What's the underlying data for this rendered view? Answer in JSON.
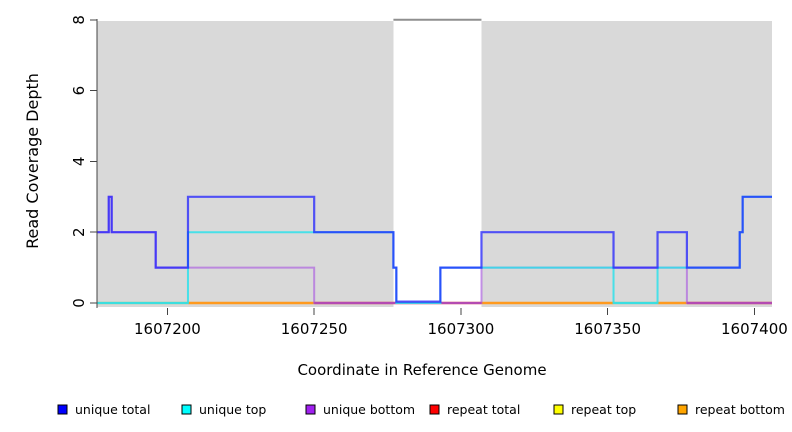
{
  "chart_data": {
    "type": "line",
    "style": "step",
    "title": "",
    "xlabel": "Coordinate in Reference Genome",
    "ylabel": "Read Coverage Depth",
    "xlim": [
      1607176,
      1607406
    ],
    "ylim": [
      0,
      8
    ],
    "x_ticks": [
      1607200,
      1607250,
      1607300,
      1607350,
      1607400
    ],
    "y_ticks": [
      0,
      2,
      4,
      6,
      8
    ],
    "grid": "off",
    "legend_position": "bottom",
    "background_regions": [
      {
        "from": 1607176,
        "to": 1607277,
        "color": "#d9d9d9"
      },
      {
        "from": 1607277,
        "to": 1607307,
        "color": "#ffffff"
      },
      {
        "from": 1607307,
        "to": 1607406,
        "color": "#d9d9d9"
      }
    ],
    "gap_top_edge": {
      "from": 1607277,
      "to": 1607307,
      "y": 8,
      "color": "#8f8f8f"
    },
    "series": [
      {
        "name": "repeat total",
        "group": "repeat",
        "line_color": "#e23b3b",
        "opacity": 1,
        "width": 1.3,
        "steps": [
          [
            1607176,
            0
          ]
        ]
      },
      {
        "name": "repeat top",
        "group": "repeat",
        "line_color": "#f2e23c",
        "opacity": 1,
        "width": 1.3,
        "steps": [
          [
            1607176,
            0
          ]
        ]
      },
      {
        "name": "repeat bottom",
        "group": "repeat",
        "line_color": "#ff9a1e",
        "opacity": 1,
        "width": 1.3,
        "steps": [
          [
            1607176,
            0
          ]
        ]
      },
      {
        "name": "unique bottom",
        "group": "unique",
        "line_color": "#a855e0",
        "opacity": 0.62,
        "width": 2,
        "steps": [
          [
            1607176,
            2
          ],
          [
            1607180,
            3
          ],
          [
            1607181,
            2
          ],
          [
            1607196,
            1
          ],
          [
            1607250,
            0
          ],
          [
            1607307,
            1
          ],
          [
            1607377,
            0
          ]
        ]
      },
      {
        "name": "unique top",
        "group": "unique",
        "line_color": "#2ee0ea",
        "opacity": 0.85,
        "width": 2,
        "steps": [
          [
            1607176,
            0
          ],
          [
            1607207,
            2
          ],
          [
            1607277,
            1
          ],
          [
            1607278,
            0
          ],
          [
            1607293,
            1
          ],
          [
            1607352,
            0
          ],
          [
            1607367,
            1
          ],
          [
            1607395,
            2
          ],
          [
            1607396,
            3
          ]
        ]
      },
      {
        "name": "unique total",
        "group": "unique",
        "line_color": "#1a1aff",
        "opacity": 0.72,
        "width": 2.2,
        "steps": [
          [
            1607176,
            2
          ],
          [
            1607180,
            3
          ],
          [
            1607181,
            2
          ],
          [
            1607196,
            1
          ],
          [
            1607207,
            3
          ],
          [
            1607250,
            2
          ],
          [
            1607277,
            1
          ],
          [
            1607278,
            0
          ],
          [
            1607293,
            1
          ],
          [
            1607307,
            2
          ],
          [
            1607352,
            1
          ],
          [
            1607367,
            2
          ],
          [
            1607377,
            1
          ],
          [
            1607395,
            2
          ],
          [
            1607396,
            3
          ]
        ]
      }
    ],
    "baseline_segments": [
      {
        "from": 1607176,
        "to": 1607207,
        "color": "#8ecf9c"
      },
      {
        "from": 1607207,
        "to": 1607250,
        "color": "#ff9a1e"
      },
      {
        "from": 1607250,
        "to": 1607307,
        "color": "#c93a66"
      },
      {
        "from": 1607307,
        "to": 1607352,
        "color": "#ff9a1e"
      },
      {
        "from": 1607352,
        "to": 1607367,
        "color": "#7ecfb0"
      },
      {
        "from": 1607367,
        "to": 1607377,
        "color": "#ff9a1e"
      },
      {
        "from": 1607377,
        "to": 1607406,
        "color": "#c93a66"
      }
    ],
    "legend": {
      "items": [
        {
          "label": "unique total",
          "color": "#0000ff"
        },
        {
          "label": "unique top",
          "color": "#00ffff"
        },
        {
          "label": "unique bottom",
          "color": "#a020f0"
        },
        {
          "label": "repeat total",
          "color": "#ff0000"
        },
        {
          "label": "repeat top",
          "color": "#ffff00"
        },
        {
          "label": "repeat bottom",
          "color": "#ffa500"
        }
      ]
    }
  }
}
